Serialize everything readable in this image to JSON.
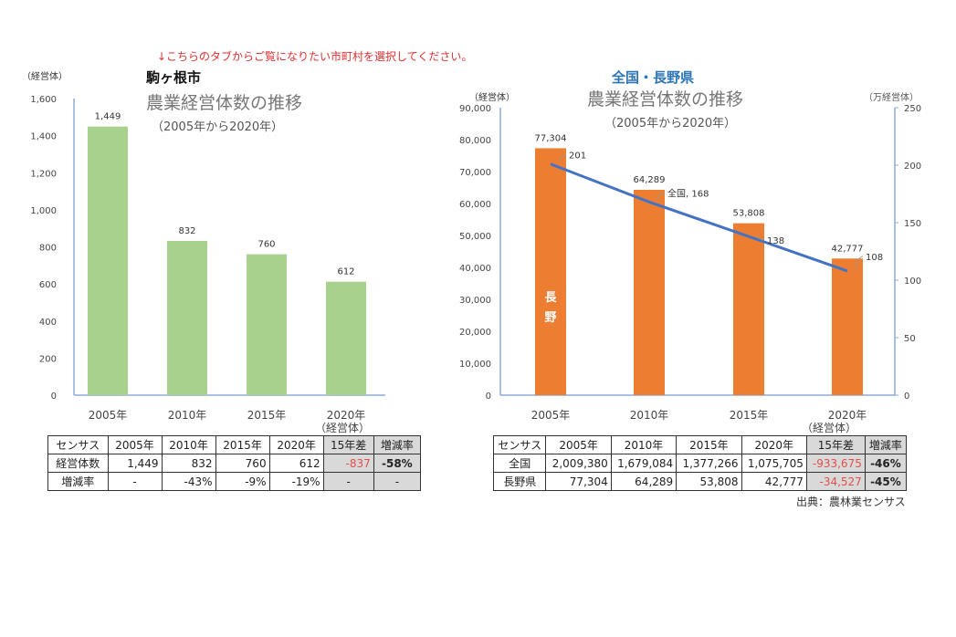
{
  "instruction": "↓こちらのタブからご覧になりたい市町村を選択してください。",
  "source": "出典：農林業センサス",
  "colors": {
    "green_bar": "#a9d18e",
    "orange_bar": "#ed7d31",
    "line": "#4472c4",
    "instruction": "#e03030",
    "negative": "#e0504a",
    "title_blue": "#2e75b6"
  },
  "chart_data": [
    {
      "type": "bar",
      "region": "駒ヶ根市",
      "title": "農業経営体数の推移",
      "subtitle": "（2005年から2020年）",
      "ylabel": "（経営体）",
      "xlabel": "（経営体）",
      "categories": [
        "2005年",
        "2010年",
        "2015年",
        "2020年"
      ],
      "values": [
        1449,
        832,
        760,
        612
      ],
      "value_labels": [
        "1,449",
        "832",
        "760",
        "612"
      ],
      "ylim": [
        0,
        1600
      ],
      "yticks": [
        "0",
        "200",
        "400",
        "600",
        "800",
        "1,000",
        "1,200",
        "1,400",
        "1,600"
      ],
      "grid": false
    },
    {
      "type": "bar+line",
      "region": "全国・長野県",
      "title": "農業経営体数の推移",
      "subtitle": "（2005年から2020年）",
      "ylabel": "（経営体）",
      "y2label": "（万経営体）",
      "xlabel": "（経営体）",
      "categories": [
        "2005年",
        "2010年",
        "2015年",
        "2020年"
      ],
      "series": [
        {
          "name": "長野",
          "type": "bar",
          "axis": "left",
          "values": [
            77304,
            64289,
            53808,
            42777
          ],
          "value_labels": [
            "77,304",
            "64,289",
            "53,808",
            "42,777"
          ]
        },
        {
          "name": "全国",
          "type": "line",
          "axis": "right",
          "values": [
            201,
            168,
            138,
            108
          ],
          "value_labels": [
            "201",
            "全国, 168",
            "138",
            "108"
          ]
        }
      ],
      "ylim": [
        0,
        90000
      ],
      "yticks": [
        "0",
        "10,000",
        "20,000",
        "30,000",
        "40,000",
        "50,000",
        "60,000",
        "70,000",
        "80,000",
        "90,000"
      ],
      "y2lim": [
        0,
        250
      ],
      "y2ticks": [
        "0",
        "50",
        "100",
        "150",
        "200",
        "250"
      ],
      "grid": false
    }
  ],
  "left_table": {
    "header": [
      "センサス",
      "2005年",
      "2010年",
      "2015年",
      "2020年",
      "15年差",
      "増減率"
    ],
    "rows": [
      [
        "経営体数",
        "1,449",
        "832",
        "760",
        "612",
        "-837",
        "-58%"
      ],
      [
        "増減率",
        "-",
        "-43%",
        "-9%",
        "-19%",
        "-",
        "-"
      ]
    ]
  },
  "right_table": {
    "header": [
      "センサス",
      "2005年",
      "2010年",
      "2015年",
      "2020年",
      "15年差",
      "増減率"
    ],
    "rows": [
      [
        "全国",
        "2,009,380",
        "1,679,084",
        "1,377,266",
        "1,075,705",
        "-933,675",
        "-46%"
      ],
      [
        "長野県",
        "77,304",
        "64,289",
        "53,808",
        "42,777",
        "-34,527",
        "-45%"
      ]
    ]
  }
}
